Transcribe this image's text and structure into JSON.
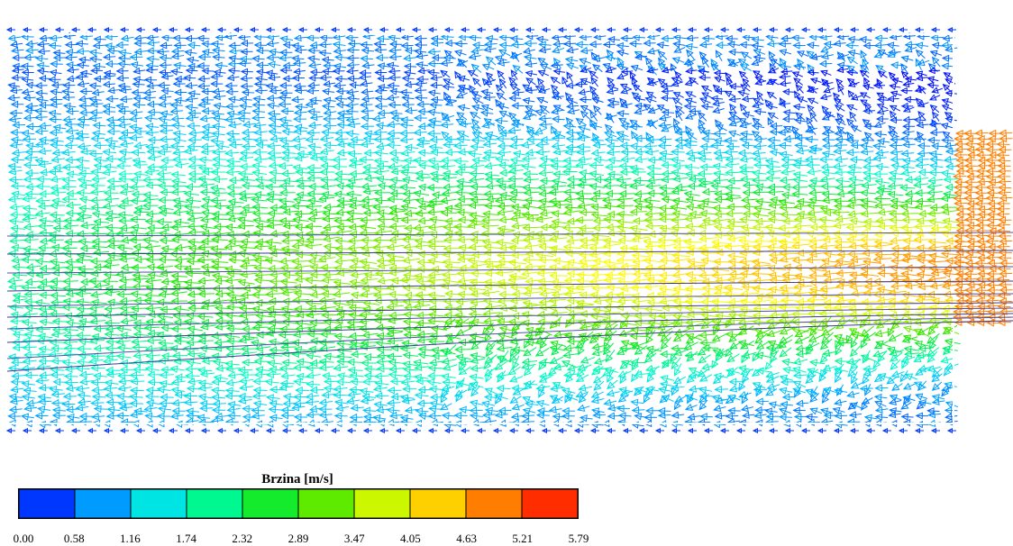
{
  "legend": {
    "title": "Brzina [m/s]",
    "ticks": [
      "0.00",
      "0.58",
      "1.16",
      "1.74",
      "2.32",
      "2.89",
      "3.47",
      "4.05",
      "4.63",
      "5.21",
      "5.79"
    ],
    "colors": [
      "#0000ff",
      "#0080ff",
      "#00ffff",
      "#00ff80",
      "#00ff00",
      "#80ff00",
      "#ffff00",
      "#ffa000",
      "#ff0000"
    ]
  },
  "chart_data": {
    "type": "vector-field",
    "quantity": "Brzina [m/s]",
    "range": [
      0.0,
      5.79
    ],
    "inlet_speed": 4.9,
    "flow_direction": "right-to-left"
  }
}
